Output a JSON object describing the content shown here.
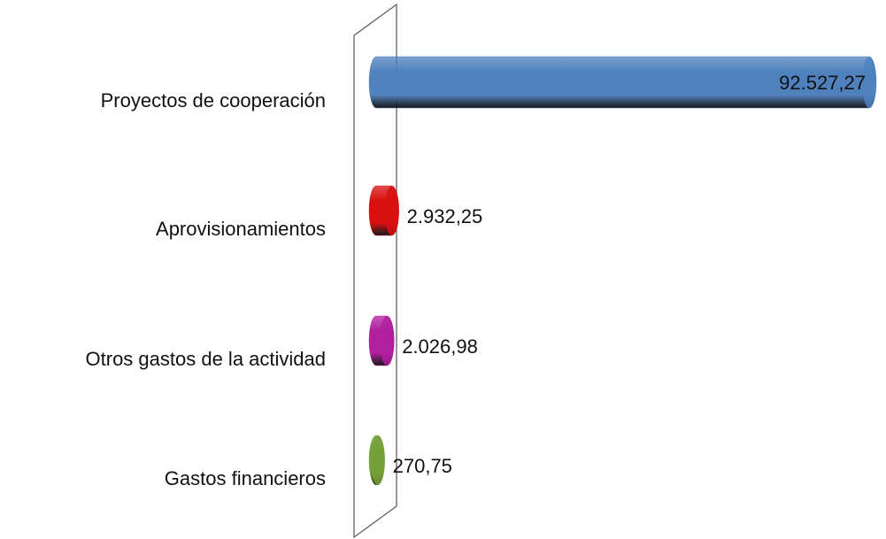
{
  "chart_data": {
    "type": "bar",
    "orientation": "horizontal",
    "categories": [
      "Proyectos de cooperación",
      "Aprovisionamientos",
      "Otros gastos de la actividad",
      "Gastos financieros"
    ],
    "values": [
      92527.27,
      2932.25,
      2026.98,
      270.75
    ],
    "value_labels": [
      "92.527,27",
      "2.932,25",
      "2.026,98",
      "270,75"
    ],
    "colors": [
      "#4f81bd",
      "#d81010",
      "#b0209f",
      "#76a03a"
    ]
  }
}
